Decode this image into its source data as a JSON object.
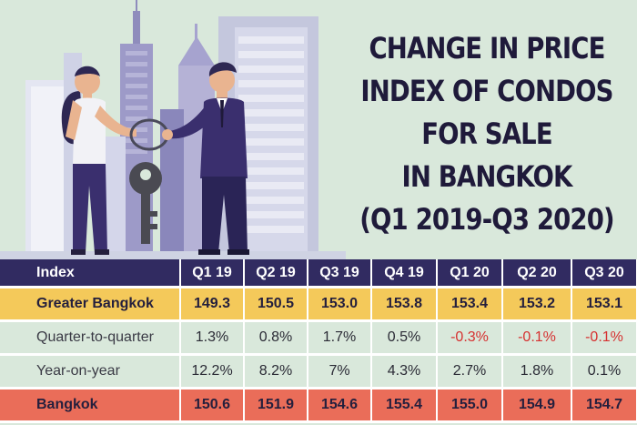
{
  "title_lines": [
    "CHANGE IN PRICE",
    "INDEX OF CONDOS",
    "FOR SALE",
    "IN BANGKOK",
    "(Q1 2019-Q3 2020)"
  ],
  "chart_data": {
    "type": "table",
    "title": "CHANGE IN PRICE INDEX OF CONDOS FOR SALE IN BANGKOK (Q1 2019-Q3 2020)",
    "header": [
      "Index",
      "Q1 19",
      "Q2 19",
      "Q3 19",
      "Q4 19",
      "Q1 20",
      "Q2 20",
      "Q3 20"
    ],
    "rows": [
      {
        "label": "Greater Bangkok",
        "style": "yellow",
        "cells": [
          "149.3",
          "150.5",
          "153.0",
          "153.8",
          "153.4",
          "153.2",
          "153.1"
        ]
      },
      {
        "label": "Quarter-to-quarter",
        "style": "plain",
        "cells": [
          "1.3%",
          "0.8%",
          "1.7%",
          "0.5%",
          "-0.3%",
          "-0.1%",
          "-0.1%"
        ]
      },
      {
        "label": "Year-on-year",
        "style": "plain",
        "cells": [
          "12.2%",
          "8.2%",
          "7%",
          "4.3%",
          "2.7%",
          "1.8%",
          "0.1%"
        ]
      },
      {
        "label": "Bangkok",
        "style": "red",
        "cells": [
          "150.6",
          "151.9",
          "154.6",
          "155.4",
          "155.0",
          "154.9",
          "154.7"
        ]
      }
    ],
    "negative_color": "#d63030"
  },
  "colors": {
    "background": "#d9e8db",
    "header": "#312b61",
    "yellow_row": "#f4c95a",
    "red_row": "#ea6d59",
    "title": "#1f1a3a"
  }
}
